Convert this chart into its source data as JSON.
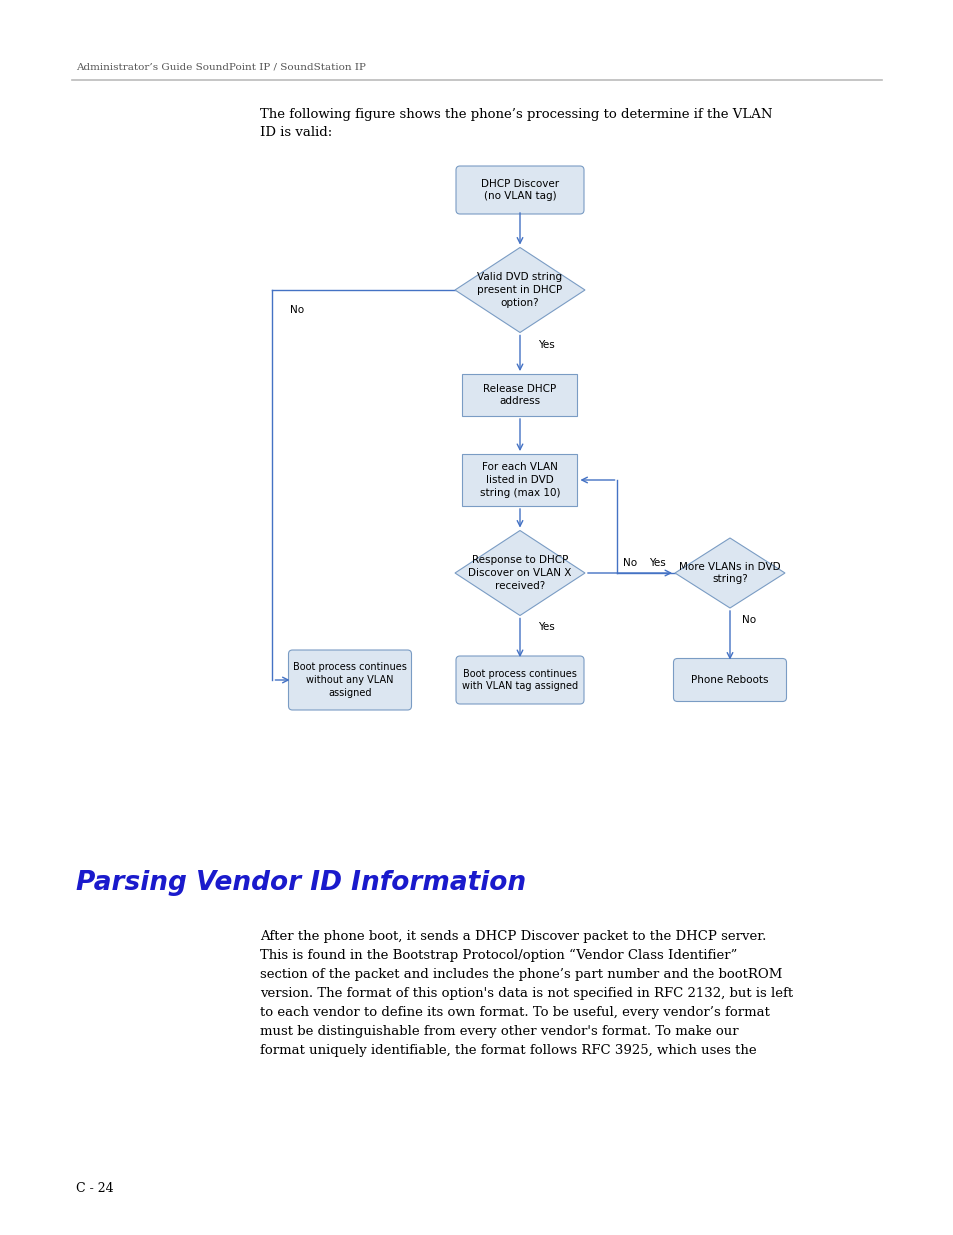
{
  "page_header": "Administrator’s Guide SoundPoint IP / SoundStation IP",
  "intro_text": "The following figure shows the phone’s processing to determine if the VLAN\nID is valid:",
  "section_title": "Parsing Vendor ID Information",
  "body_text": "After the phone boot, it sends a DHCP Discover packet to the DHCP server.\nThis is found in the Bootstrap Protocol/option “Vendor Class Identifier”\nsection of the packet and includes the phone’s part number and the bootROM\nversion. The format of this option's data is not specified in RFC 2132, but is left\nto each vendor to define its own format. To be useful, every vendor’s format\nmust be distinguishable from every other vendor's format. To make our\nformat uniquely identifiable, the format follows RFC 3925, which uses the",
  "page_footer": "C - 24",
  "bg_color": "#ffffff",
  "text_color": "#000000",
  "title_color": "#1a1acc",
  "header_color": "#555555",
  "box_fill": "#dce6f1",
  "box_edge": "#7a9cc4",
  "arrow_color": "#4472c4",
  "line_color": "#4472c4"
}
